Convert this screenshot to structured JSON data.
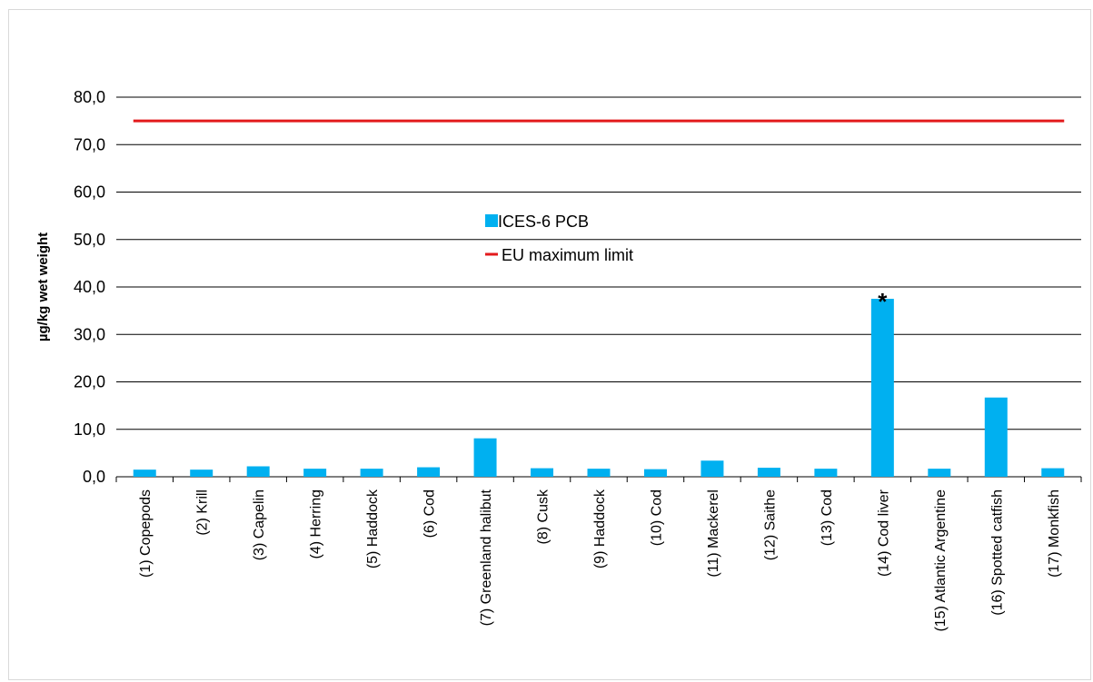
{
  "chart_data": {
    "type": "bar",
    "title": "",
    "xlabel": "",
    "ylabel": "µg/kg wet weight",
    "ylim": [
      0,
      80
    ],
    "yticks": [
      0,
      10,
      20,
      30,
      40,
      50,
      60,
      70,
      80
    ],
    "ytick_labels": [
      "0,0",
      "10,0",
      "20,0",
      "30,0",
      "40,0",
      "50,0",
      "60,0",
      "70,0",
      "80,0"
    ],
    "grid": true,
    "categories": [
      "(1) Copepods",
      "(2) Krill",
      "(3) Capelin",
      "(4) Herring",
      "(5) Haddock",
      "(6) Cod",
      "(7) Greenland halibut",
      "(8) Cusk",
      "(9) Haddock",
      "(10) Cod",
      "(11) Mackerel",
      "(12) Saithe",
      "(13) Cod",
      "(14) Cod liver",
      "(15) Atlantic Argentine",
      "(16) Spotted catfish",
      "(17) Monkfish"
    ],
    "series": [
      {
        "name": "ICES-6 PCB",
        "type": "bar",
        "color": "#00b0f0",
        "values": [
          1.5,
          1.5,
          2.2,
          1.7,
          1.7,
          2.0,
          8.1,
          1.8,
          1.7,
          1.6,
          3.4,
          1.9,
          1.7,
          37.5,
          1.7,
          16.7,
          1.8
        ]
      },
      {
        "name": "EU maximum limit",
        "type": "line",
        "color": "#e31a1c",
        "values": [
          75,
          75,
          75,
          75,
          75,
          75,
          75,
          75,
          75,
          75,
          75,
          75,
          75,
          75,
          75,
          75,
          75
        ]
      }
    ],
    "annotations": [
      {
        "category": "(14) Cod liver",
        "text": "*"
      }
    ],
    "legend": {
      "placement": "center"
    }
  }
}
